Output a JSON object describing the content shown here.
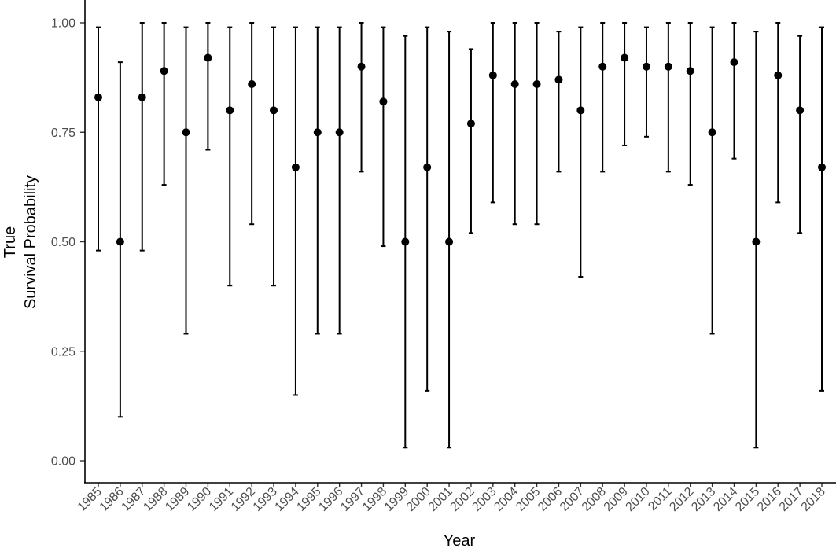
{
  "chart_data": {
    "type": "scatter",
    "xlabel": "Year",
    "ylabel_lines": [
      "True",
      "Survival Probability"
    ],
    "ylim": [
      0,
      1
    ],
    "y_ticks": [
      0.0,
      0.25,
      0.5,
      0.75,
      1.0
    ],
    "y_tick_labels": [
      "0.00",
      "0.25",
      "0.50",
      "0.75",
      "1.00"
    ],
    "grid": false,
    "error_bars": true,
    "categories": [
      "1985",
      "1986",
      "1987",
      "1988",
      "1989",
      "1990",
      "1991",
      "1992",
      "1993",
      "1994",
      "1995",
      "1996",
      "1997",
      "1998",
      "1999",
      "2000",
      "2001",
      "2002",
      "2003",
      "2004",
      "2005",
      "2006",
      "2007",
      "2008",
      "2009",
      "2010",
      "2011",
      "2012",
      "2013",
      "2014",
      "2015",
      "2016",
      "2017",
      "2018"
    ],
    "values": [
      0.83,
      0.5,
      0.83,
      0.89,
      0.75,
      0.92,
      0.8,
      0.86,
      0.8,
      0.67,
      0.75,
      0.75,
      0.9,
      0.82,
      0.5,
      0.67,
      0.5,
      0.77,
      0.88,
      0.86,
      0.86,
      0.87,
      0.8,
      0.9,
      0.92,
      0.9,
      0.9,
      0.89,
      0.75,
      0.91,
      0.5,
      0.88,
      0.8,
      0.67
    ],
    "lower": [
      0.48,
      0.1,
      0.48,
      0.63,
      0.29,
      0.71,
      0.4,
      0.54,
      0.4,
      0.15,
      0.29,
      0.29,
      0.66,
      0.49,
      0.03,
      0.16,
      0.03,
      0.52,
      0.59,
      0.54,
      0.54,
      0.66,
      0.42,
      0.66,
      0.72,
      0.74,
      0.66,
      0.63,
      0.29,
      0.69,
      0.03,
      0.59,
      0.52,
      0.16
    ],
    "upper": [
      0.99,
      0.91,
      1.0,
      1.0,
      0.99,
      1.0,
      0.99,
      1.0,
      0.99,
      0.99,
      0.99,
      0.99,
      1.0,
      0.99,
      0.97,
      0.99,
      0.98,
      0.94,
      1.0,
      1.0,
      1.0,
      0.98,
      0.99,
      1.0,
      1.0,
      0.99,
      1.0,
      1.0,
      0.99,
      1.0,
      0.98,
      1.0,
      0.97,
      0.99
    ]
  }
}
